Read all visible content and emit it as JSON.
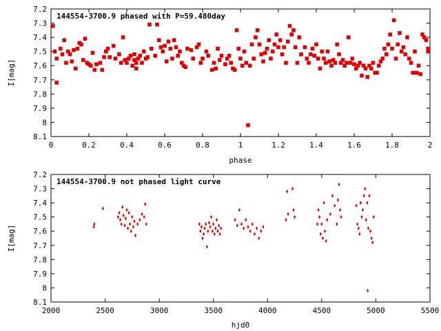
{
  "chart_data": [
    {
      "type": "scatter",
      "title": "144554-3700.9 phased with P=59.480day",
      "xlabel": "phase",
      "ylabel": "I[mag]",
      "xlim": [
        0,
        2
      ],
      "ylim": [
        7.2,
        8.1
      ],
      "y_inverted": true,
      "x_ticks": [
        "0",
        "0.2",
        "0.4",
        "0.6",
        "0.8",
        "1",
        "1.2",
        "1.4",
        "1.6",
        "1.8",
        "2"
      ],
      "y_ticks": [
        "7.2",
        "7.3",
        "7.4",
        "7.5",
        "7.6",
        "7.7",
        "7.8",
        "7.9",
        "8",
        "8.1"
      ],
      "marker_color": "#e00000",
      "points": [
        [
          0.01,
          7.32
        ],
        [
          0.02,
          7.5
        ],
        [
          0.03,
          7.55
        ],
        [
          0.03,
          7.72
        ],
        [
          0.05,
          7.48
        ],
        [
          0.06,
          7.52
        ],
        [
          0.07,
          7.42
        ],
        [
          0.08,
          7.58
        ],
        [
          0.09,
          7.5
        ],
        [
          0.1,
          7.52
        ],
        [
          0.11,
          7.57
        ],
        [
          0.12,
          7.49
        ],
        [
          0.13,
          7.62
        ],
        [
          0.14,
          7.48
        ],
        [
          0.15,
          7.44
        ],
        [
          0.16,
          7.45
        ],
        [
          0.17,
          7.56
        ],
        [
          0.18,
          7.41
        ],
        [
          0.19,
          7.58
        ],
        [
          0.2,
          7.59
        ],
        [
          0.21,
          7.6
        ],
        [
          0.22,
          7.51
        ],
        [
          0.23,
          7.63
        ],
        [
          0.24,
          7.59
        ],
        [
          0.26,
          7.58
        ],
        [
          0.27,
          7.63
        ],
        [
          0.28,
          7.54
        ],
        [
          0.29,
          7.5
        ],
        [
          0.3,
          7.48
        ],
        [
          0.31,
          7.54
        ],
        [
          0.33,
          7.46
        ],
        [
          0.34,
          7.55
        ],
        [
          0.36,
          7.52
        ],
        [
          0.37,
          7.58
        ],
        [
          0.38,
          7.4
        ],
        [
          0.39,
          7.56
        ],
        [
          0.4,
          7.58
        ],
        [
          0.41,
          7.55
        ],
        [
          0.42,
          7.53
        ],
        [
          0.43,
          7.6
        ],
        [
          0.44,
          7.56
        ],
        [
          0.44,
          7.52
        ],
        [
          0.45,
          7.58
        ],
        [
          0.45,
          7.62
        ],
        [
          0.46,
          7.55
        ],
        [
          0.47,
          7.53
        ],
        [
          0.48,
          7.58
        ],
        [
          0.49,
          7.5
        ],
        [
          0.5,
          7.55
        ],
        [
          0.51,
          7.54
        ],
        [
          0.52,
          7.31
        ],
        [
          0.53,
          7.48
        ],
        [
          0.55,
          7.53
        ],
        [
          0.56,
          7.31
        ],
        [
          0.57,
          7.42
        ],
        [
          0.58,
          7.47
        ],
        [
          0.59,
          7.5
        ],
        [
          0.6,
          7.46
        ],
        [
          0.61,
          7.57
        ],
        [
          0.62,
          7.43
        ],
        [
          0.63,
          7.48
        ],
        [
          0.64,
          7.55
        ],
        [
          0.65,
          7.42
        ],
        [
          0.66,
          7.47
        ],
        [
          0.67,
          7.53
        ],
        [
          0.68,
          7.5
        ],
        [
          0.69,
          7.58
        ],
        [
          0.7,
          7.6
        ],
        [
          0.71,
          7.61
        ],
        [
          0.72,
          7.48
        ],
        [
          0.74,
          7.49
        ],
        [
          0.75,
          7.55
        ],
        [
          0.77,
          7.47
        ],
        [
          0.78,
          7.45
        ],
        [
          0.79,
          7.58
        ],
        [
          0.8,
          7.55
        ],
        [
          0.82,
          7.5
        ],
        [
          0.83,
          7.53
        ],
        [
          0.85,
          7.63
        ],
        [
          0.86,
          7.58
        ],
        [
          0.87,
          7.62
        ],
        [
          0.88,
          7.48
        ],
        [
          0.89,
          7.56
        ],
        [
          0.9,
          7.53
        ],
        [
          0.92,
          7.59
        ],
        [
          0.93,
          7.55
        ],
        [
          0.94,
          7.53
        ],
        [
          0.95,
          7.58
        ],
        [
          0.96,
          7.62
        ],
        [
          0.97,
          7.63
        ],
        [
          0.98,
          7.35
        ],
        [
          0.99,
          7.48
        ],
        [
          1.0,
          7.55
        ],
        [
          1.01,
          7.6
        ],
        [
          1.02,
          7.5
        ],
        [
          1.03,
          7.58
        ],
        [
          1.04,
          8.02
        ],
        [
          1.05,
          7.6
        ],
        [
          1.06,
          7.45
        ],
        [
          1.07,
          7.55
        ],
        [
          1.08,
          7.4
        ],
        [
          1.09,
          7.35
        ],
        [
          1.1,
          7.45
        ],
        [
          1.11,
          7.52
        ],
        [
          1.12,
          7.57
        ],
        [
          1.13,
          7.51
        ],
        [
          1.14,
          7.48
        ],
        [
          1.15,
          7.42
        ],
        [
          1.16,
          7.55
        ],
        [
          1.17,
          7.5
        ],
        [
          1.18,
          7.45
        ],
        [
          1.19,
          7.38
        ],
        [
          1.2,
          7.47
        ],
        [
          1.21,
          7.42
        ],
        [
          1.22,
          7.52
        ],
        [
          1.23,
          7.47
        ],
        [
          1.24,
          7.58
        ],
        [
          1.25,
          7.43
        ],
        [
          1.26,
          7.32
        ],
        [
          1.27,
          7.38
        ],
        [
          1.28,
          7.35
        ],
        [
          1.29,
          7.47
        ],
        [
          1.3,
          7.58
        ],
        [
          1.31,
          7.4
        ],
        [
          1.32,
          7.52
        ],
        [
          1.34,
          7.47
        ],
        [
          1.35,
          7.55
        ],
        [
          1.36,
          7.58
        ],
        [
          1.37,
          7.52
        ],
        [
          1.38,
          7.48
        ],
        [
          1.39,
          7.53
        ],
        [
          1.4,
          7.45
        ],
        [
          1.41,
          7.55
        ],
        [
          1.42,
          7.62
        ],
        [
          1.43,
          7.5
        ],
        [
          1.44,
          7.55
        ],
        [
          1.45,
          7.58
        ],
        [
          1.46,
          7.5
        ],
        [
          1.47,
          7.57
        ],
        [
          1.48,
          7.6
        ],
        [
          1.49,
          7.56
        ],
        [
          1.5,
          7.58
        ],
        [
          1.51,
          7.45
        ],
        [
          1.52,
          7.52
        ],
        [
          1.53,
          7.58
        ],
        [
          1.54,
          7.56
        ],
        [
          1.55,
          7.6
        ],
        [
          1.56,
          7.58
        ],
        [
          1.57,
          7.4
        ],
        [
          1.58,
          7.58
        ],
        [
          1.59,
          7.55
        ],
        [
          1.6,
          7.59
        ],
        [
          1.61,
          7.62
        ],
        [
          1.62,
          7.6
        ],
        [
          1.63,
          7.58
        ],
        [
          1.64,
          7.67
        ],
        [
          1.65,
          7.6
        ],
        [
          1.66,
          7.62
        ],
        [
          1.67,
          7.68
        ],
        [
          1.68,
          7.6
        ],
        [
          1.69,
          7.62
        ],
        [
          1.7,
          7.58
        ],
        [
          1.71,
          7.65
        ],
        [
          1.72,
          7.65
        ],
        [
          1.73,
          7.6
        ],
        [
          1.74,
          7.57
        ],
        [
          1.75,
          7.55
        ],
        [
          1.76,
          7.48
        ],
        [
          1.77,
          7.52
        ],
        [
          1.78,
          7.45
        ],
        [
          1.79,
          7.38
        ],
        [
          1.8,
          7.48
        ],
        [
          1.81,
          7.28
        ],
        [
          1.82,
          7.55
        ],
        [
          1.83,
          7.45
        ],
        [
          1.84,
          7.37
        ],
        [
          1.85,
          7.5
        ],
        [
          1.86,
          7.47
        ],
        [
          1.87,
          7.52
        ],
        [
          1.88,
          7.4
        ],
        [
          1.89,
          7.55
        ],
        [
          1.9,
          7.58
        ],
        [
          1.91,
          7.65
        ],
        [
          1.92,
          7.5
        ],
        [
          1.93,
          7.65
        ],
        [
          1.94,
          7.6
        ],
        [
          1.95,
          7.66
        ],
        [
          1.96,
          7.38
        ],
        [
          1.97,
          7.4
        ],
        [
          1.98,
          7.42
        ],
        [
          1.99,
          7.5
        ],
        [
          1.99,
          7.48
        ]
      ]
    },
    {
      "type": "scatter",
      "title": "144554-3700.9 not phased light curve",
      "xlabel": "hjd0",
      "ylabel": "I[mag]",
      "xlim": [
        2000,
        5500
      ],
      "ylim": [
        7.2,
        8.1
      ],
      "y_inverted": true,
      "x_ticks": [
        "2000",
        "2500",
        "3000",
        "3500",
        "4000",
        "4500",
        "5000",
        "5500"
      ],
      "y_ticks": [
        "7.2",
        "7.3",
        "7.4",
        "7.5",
        "7.6",
        "7.7",
        "7.8",
        "7.9",
        "8",
        "8.1"
      ],
      "marker_color": "#e00000",
      "points": [
        [
          2395,
          7.57
        ],
        [
          2400,
          7.55
        ],
        [
          2480,
          7.44
        ],
        [
          2620,
          7.5
        ],
        [
          2630,
          7.47
        ],
        [
          2640,
          7.52
        ],
        [
          2650,
          7.55
        ],
        [
          2660,
          7.43
        ],
        [
          2670,
          7.49
        ],
        [
          2680,
          7.56
        ],
        [
          2690,
          7.51
        ],
        [
          2700,
          7.45
        ],
        [
          2710,
          7.58
        ],
        [
          2720,
          7.47
        ],
        [
          2730,
          7.55
        ],
        [
          2740,
          7.6
        ],
        [
          2750,
          7.5
        ],
        [
          2760,
          7.57
        ],
        [
          2770,
          7.53
        ],
        [
          2780,
          7.63
        ],
        [
          2800,
          7.55
        ],
        [
          2820,
          7.52
        ],
        [
          2840,
          7.48
        ],
        [
          2860,
          7.5
        ],
        [
          2870,
          7.41
        ],
        [
          2880,
          7.55
        ],
        [
          3370,
          7.55
        ],
        [
          3380,
          7.6
        ],
        [
          3390,
          7.57
        ],
        [
          3400,
          7.65
        ],
        [
          3410,
          7.62
        ],
        [
          3420,
          7.58
        ],
        [
          3430,
          7.55
        ],
        [
          3440,
          7.71
        ],
        [
          3450,
          7.6
        ],
        [
          3460,
          7.54
        ],
        [
          3470,
          7.57
        ],
        [
          3480,
          7.5
        ],
        [
          3490,
          7.6
        ],
        [
          3500,
          7.55
        ],
        [
          3510,
          7.62
        ],
        [
          3520,
          7.58
        ],
        [
          3530,
          7.52
        ],
        [
          3540,
          7.6
        ],
        [
          3550,
          7.56
        ],
        [
          3560,
          7.62
        ],
        [
          3570,
          7.58
        ],
        [
          3700,
          7.52
        ],
        [
          3720,
          7.56
        ],
        [
          3740,
          7.45
        ],
        [
          3760,
          7.55
        ],
        [
          3780,
          7.58
        ],
        [
          3800,
          7.52
        ],
        [
          3820,
          7.57
        ],
        [
          3840,
          7.6
        ],
        [
          3860,
          7.55
        ],
        [
          3880,
          7.62
        ],
        [
          3900,
          7.58
        ],
        [
          3920,
          7.65
        ],
        [
          3940,
          7.6
        ],
        [
          3960,
          7.57
        ],
        [
          4170,
          7.52
        ],
        [
          4180,
          7.32
        ],
        [
          4190,
          7.48
        ],
        [
          4230,
          7.3
        ],
        [
          4240,
          7.45
        ],
        [
          4250,
          7.5
        ],
        [
          4460,
          7.55
        ],
        [
          4470,
          7.45
        ],
        [
          4480,
          7.5
        ],
        [
          4490,
          7.62
        ],
        [
          4500,
          7.55
        ],
        [
          4510,
          7.65
        ],
        [
          4520,
          7.4
        ],
        [
          4530,
          7.6
        ],
        [
          4540,
          7.67
        ],
        [
          4550,
          7.52
        ],
        [
          4580,
          7.48
        ],
        [
          4600,
          7.35
        ],
        [
          4620,
          7.42
        ],
        [
          4640,
          7.55
        ],
        [
          4650,
          7.38
        ],
        [
          4660,
          7.27
        ],
        [
          4670,
          7.45
        ],
        [
          4680,
          7.5
        ],
        [
          4820,
          7.42
        ],
        [
          4830,
          7.55
        ],
        [
          4840,
          7.58
        ],
        [
          4850,
          7.62
        ],
        [
          4860,
          7.4
        ],
        [
          4870,
          7.5
        ],
        [
          4880,
          7.45
        ],
        [
          4890,
          7.35
        ],
        [
          4900,
          7.3
        ],
        [
          4910,
          7.52
        ],
        [
          4920,
          7.4
        ],
        [
          4925,
          8.02
        ],
        [
          4930,
          7.58
        ],
        [
          4940,
          7.35
        ],
        [
          4950,
          7.6
        ],
        [
          4960,
          7.65
        ],
        [
          4970,
          7.68
        ],
        [
          4980,
          7.5
        ]
      ]
    }
  ]
}
